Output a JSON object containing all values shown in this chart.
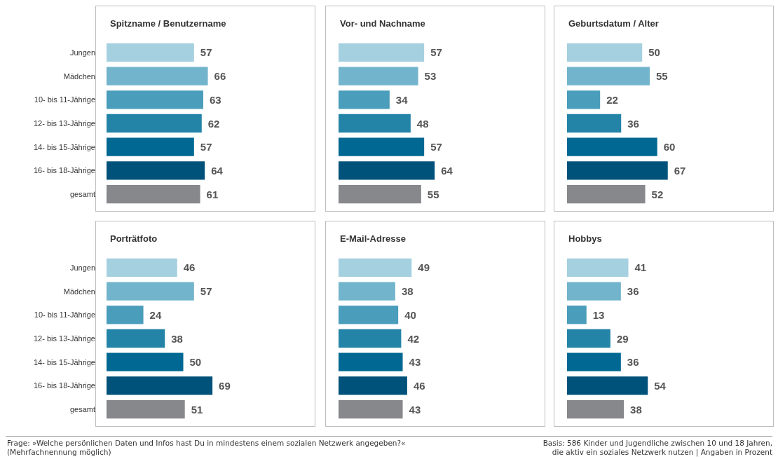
{
  "chart_data": [
    {
      "type": "bar",
      "orientation": "horizontal",
      "title": "Spitzname / Benutzername",
      "categories": [
        "Jungen",
        "Mädchen",
        "10- bis 11-Jährige",
        "12- bis 13-Jährige",
        "14- bis 15-Jährige",
        "16- bis 18-Jährige",
        "gesamt"
      ],
      "values": [
        57,
        66,
        63,
        62,
        57,
        64,
        61
      ],
      "colors": [
        "#a5d0e0",
        "#72b4cc",
        "#4a9dbb",
        "#2484a8",
        "#006892",
        "#00527a",
        "#87888c"
      ],
      "data_labels": true,
      "tick_labels": "y",
      "annotations": [
        "Frage: »Welche persönlichen Daten und Infos hast Du in mindestens einem sozialen Netzwerk angegeben?« (Mehrfachnennung möglich)",
        "Basis: 586 Kinder und Jugendliche zwischen 10 und 18 Jahren, die aktiv ein soziales Netzwerk nutzen | Angaben in Prozent"
      ]
    },
    {
      "type": "bar",
      "orientation": "horizontal",
      "title": "Vor- und Nachname",
      "categories": [
        null,
        null,
        null,
        null,
        null,
        null,
        null
      ],
      "values": [
        57,
        53,
        34,
        48,
        57,
        64,
        55
      ],
      "colors": [
        "#a5d0e0",
        "#72b4cc",
        "#4a9dbb",
        "#2484a8",
        "#006892",
        "#00527a",
        "#87888c"
      ],
      "data_labels": true,
      "tick_labels": "y"
    },
    {
      "type": "bar",
      "orientation": "horizontal",
      "title": "Geburtsdatum / Alter",
      "categories": [
        null,
        null,
        null,
        null,
        null,
        null,
        null
      ],
      "values": [
        50,
        55,
        22,
        36,
        60,
        67,
        52
      ],
      "colors": [
        "#a5d0e0",
        "#72b4cc",
        "#4a9dbb",
        "#2484a8",
        "#006892",
        "#00527a",
        "#87888c"
      ],
      "data_labels": true,
      "tick_labels": "y"
    },
    {
      "type": "bar",
      "orientation": "horizontal",
      "title": "Porträtfoto",
      "categories": [
        "Jungen",
        "Mädchen",
        "10- bis 11-Jährige",
        "12- bis 13-Jährige",
        "14- bis 15-Jährige",
        "16- bis 18-Jährige",
        "gesamt"
      ],
      "values": [
        46,
        57,
        24,
        38,
        50,
        69,
        51
      ],
      "colors": [
        "#a5d0e0",
        "#72b4cc",
        "#4a9dbb",
        "#2484a8",
        "#006892",
        "#00527a",
        "#87888c"
      ],
      "data_labels": true,
      "tick_labels": "y"
    },
    {
      "type": "bar",
      "orientation": "horizontal",
      "title": "E-Mail-Adresse",
      "categories": [
        null,
        null,
        null,
        null,
        null,
        null,
        null
      ],
      "values": [
        49,
        38,
        40,
        42,
        43,
        46,
        43
      ],
      "colors": [
        "#a5d0e0",
        "#72b4cc",
        "#4a9dbb",
        "#2484a8",
        "#006892",
        "#00527a",
        "#87888c"
      ],
      "data_labels": true,
      "tick_labels": "y"
    },
    {
      "type": "bar",
      "orientation": "horizontal",
      "title": "Hobbys",
      "categories": [
        null,
        null,
        null,
        null,
        null,
        null,
        null
      ],
      "values": [
        41,
        36,
        13,
        29,
        36,
        54,
        38
      ],
      "colors": [
        "#a5d0e0",
        "#72b4cc",
        "#4a9dbb",
        "#2484a8",
        "#006892",
        "#00527a",
        "#87888c"
      ],
      "data_labels": true,
      "tick_labels": "y"
    }
  ]
}
